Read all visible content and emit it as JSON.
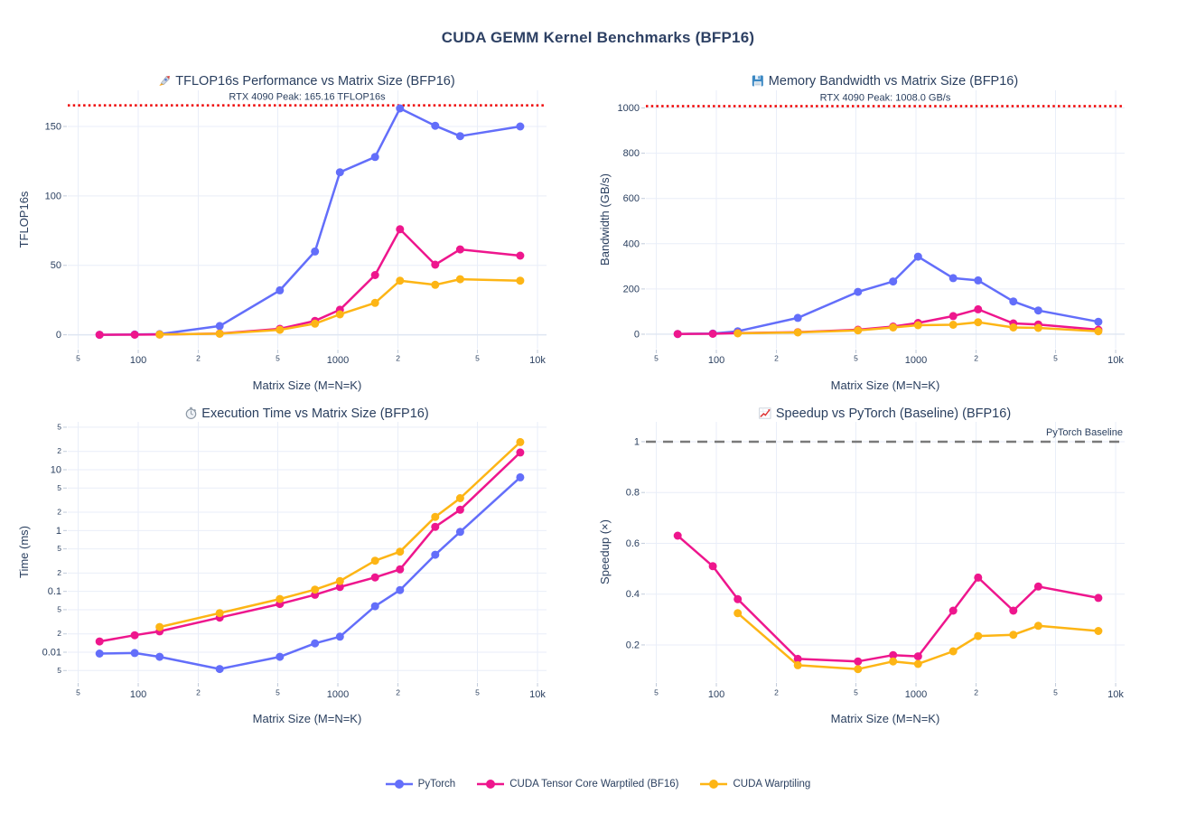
{
  "page_title": "CUDA GEMM Kernel Benchmarks (BFP16)",
  "colors": {
    "pytorch": "#636EFA",
    "tensor_core": "#EE168D",
    "warptiling": "#FDB515",
    "peak_line": "#EE0000",
    "baseline_line": "#7a7a7a",
    "text": "#2a3f5f",
    "grid": "#E9EEF8",
    "zero_line": "#DFE6F2",
    "tick_mark": "#C2CCDB"
  },
  "legend": {
    "items": [
      {
        "label": "PyTorch",
        "color_key": "pytorch"
      },
      {
        "label": "CUDA Tensor Core Warptiled (BF16)",
        "color_key": "tensor_core"
      },
      {
        "label": "CUDA Warptiling",
        "color_key": "warptiling"
      }
    ]
  },
  "x_axis": {
    "title": "Matrix Size (M=N=K)",
    "scale": "log",
    "ticks": [
      {
        "v": 50,
        "label": "5",
        "minor": true
      },
      {
        "v": 100,
        "label": "100"
      },
      {
        "v": 200,
        "label": "2",
        "minor": true
      },
      {
        "v": 500,
        "label": "5",
        "minor": true
      },
      {
        "v": 1000,
        "label": "1000"
      },
      {
        "v": 2000,
        "label": "2",
        "minor": true
      },
      {
        "v": 5000,
        "label": "5",
        "minor": true
      },
      {
        "v": 10000,
        "label": "10k"
      }
    ]
  },
  "chart_data": [
    {
      "id": "tflops",
      "type": "line",
      "title": "🚀 TFLOP16s Performance vs Matrix Size (BFP16)",
      "title_text": "TFLOP16s Performance vs Matrix Size (BFP16)",
      "icon": "rocket",
      "xlabel": "Matrix Size (M=N=K)",
      "ylabel": "TFLOP16s",
      "xscale": "log",
      "yscale": "linear",
      "xlim_log": [
        1.647,
        4.045
      ],
      "ylim": [
        -10,
        176
      ],
      "yticks": [
        {
          "v": 0,
          "label": "0"
        },
        {
          "v": 50,
          "label": "50"
        },
        {
          "v": 100,
          "label": "100"
        },
        {
          "v": 150,
          "label": "150"
        }
      ],
      "ref_line": {
        "v": 165.16,
        "label": "RTX 4090 Peak: 165.16 TFLOP16s",
        "dash": "dot",
        "color_key": "peak_line",
        "label_anchor": "center"
      },
      "series": [
        {
          "name": "PyTorch",
          "color_key": "pytorch",
          "x": [
            64,
            96,
            128,
            256,
            512,
            768,
            1024,
            1536,
            2048,
            3072,
            4096,
            8192
          ],
          "y": [
            0.04,
            0.18,
            0.45,
            6.3,
            32,
            60,
            117,
            128,
            163,
            150.5,
            143,
            150
          ]
        },
        {
          "name": "CUDA Tensor Core Warptiled (BF16)",
          "color_key": "tensor_core",
          "x": [
            64,
            96,
            128,
            256,
            512,
            768,
            1024,
            1536,
            2048,
            3072,
            4096,
            8192
          ],
          "y": [
            0.03,
            0.09,
            0.2,
            0.9,
            4.3,
            10,
            18,
            43,
            76,
            50.5,
            61.5,
            57
          ]
        },
        {
          "name": "CUDA Warptiling",
          "color_key": "warptiling",
          "x": [
            128,
            256,
            512,
            768,
            1024,
            1536,
            2048,
            3072,
            4096,
            8192
          ],
          "y": [
            0.2,
            0.8,
            3.6,
            8,
            14.7,
            23,
            39,
            36,
            40,
            39
          ]
        }
      ]
    },
    {
      "id": "bandwidth",
      "type": "line",
      "title": "💾 Memory Bandwidth vs Matrix Size (BFP16)",
      "title_text": "Memory Bandwidth vs Matrix Size (BFP16)",
      "icon": "floppy",
      "xlabel": "Matrix Size (M=N=K)",
      "ylabel": "Bandwidth (GB/s)",
      "xscale": "log",
      "yscale": "linear",
      "xlim_log": [
        1.647,
        4.045
      ],
      "ylim": [
        -64,
        1078
      ],
      "yticks": [
        {
          "v": 0,
          "label": "0"
        },
        {
          "v": 200,
          "label": "200"
        },
        {
          "v": 400,
          "label": "400"
        },
        {
          "v": 600,
          "label": "600"
        },
        {
          "v": 800,
          "label": "800"
        },
        {
          "v": 1000,
          "label": "1000"
        }
      ],
      "ref_line": {
        "v": 1008.0,
        "label": "RTX 4090 Peak: 1008.0 GB/s",
        "dash": "dot",
        "color_key": "peak_line",
        "label_anchor": "center"
      },
      "series": [
        {
          "name": "PyTorch",
          "color_key": "pytorch",
          "x": [
            64,
            96,
            128,
            256,
            512,
            768,
            1024,
            1536,
            2048,
            3072,
            4096,
            8192
          ],
          "y": [
            1,
            3,
            13,
            72,
            187,
            233,
            343,
            248,
            238,
            145,
            105,
            55
          ]
        },
        {
          "name": "CUDA Tensor Core Warptiled (BF16)",
          "color_key": "tensor_core",
          "x": [
            64,
            96,
            128,
            256,
            512,
            768,
            1024,
            1536,
            2048,
            3072,
            4096,
            8192
          ],
          "y": [
            1,
            2,
            5,
            9,
            20,
            34,
            50,
            80,
            110,
            48,
            43,
            20
          ]
        },
        {
          "name": "CUDA Warptiling",
          "color_key": "warptiling",
          "x": [
            128,
            256,
            512,
            768,
            1024,
            1536,
            2048,
            3072,
            4096,
            8192
          ],
          "y": [
            4,
            8,
            17,
            30,
            40,
            42,
            53,
            30,
            28,
            13
          ]
        }
      ]
    },
    {
      "id": "time",
      "type": "line",
      "title": "⏱️ Execution Time vs Matrix Size (BFP16)",
      "title_text": "Execution Time vs Matrix Size (BFP16)",
      "icon": "stopwatch",
      "xlabel": "Matrix Size (M=N=K)",
      "ylabel": "Time (ms)",
      "xscale": "log",
      "yscale": "log",
      "xlim_log": [
        1.647,
        4.045
      ],
      "ylim_log": [
        -2.49,
        1.787
      ],
      "yticks": [
        {
          "v": 0.005,
          "label": "5",
          "minor": true
        },
        {
          "v": 0.01,
          "label": "0.01"
        },
        {
          "v": 0.02,
          "label": "2",
          "minor": true
        },
        {
          "v": 0.05,
          "label": "5",
          "minor": true
        },
        {
          "v": 0.1,
          "label": "0.1"
        },
        {
          "v": 0.2,
          "label": "2",
          "minor": true
        },
        {
          "v": 0.5,
          "label": "5",
          "minor": true
        },
        {
          "v": 1,
          "label": "1"
        },
        {
          "v": 2,
          "label": "2",
          "minor": true
        },
        {
          "v": 5,
          "label": "5",
          "minor": true
        },
        {
          "v": 10,
          "label": "10"
        },
        {
          "v": 20,
          "label": "2",
          "minor": true
        },
        {
          "v": 50,
          "label": "5",
          "minor": true
        }
      ],
      "series": [
        {
          "name": "PyTorch",
          "color_key": "pytorch",
          "x": [
            64,
            96,
            128,
            256,
            512,
            768,
            1024,
            1536,
            2048,
            3072,
            4096,
            8192
          ],
          "y": [
            0.0095,
            0.0097,
            0.0084,
            0.0053,
            0.0084,
            0.014,
            0.018,
            0.057,
            0.105,
            0.4,
            0.95,
            7.5
          ]
        },
        {
          "name": "CUDA Tensor Core Warptiled (BF16)",
          "color_key": "tensor_core",
          "x": [
            64,
            96,
            128,
            256,
            512,
            768,
            1024,
            1536,
            2048,
            3072,
            4096,
            8192
          ],
          "y": [
            0.015,
            0.019,
            0.022,
            0.037,
            0.062,
            0.088,
            0.118,
            0.17,
            0.23,
            1.15,
            2.2,
            19.2
          ]
        },
        {
          "name": "CUDA Warptiling",
          "color_key": "warptiling",
          "x": [
            128,
            256,
            512,
            768,
            1024,
            1536,
            2048,
            3072,
            4096,
            8192
          ],
          "y": [
            0.026,
            0.044,
            0.075,
            0.107,
            0.148,
            0.32,
            0.45,
            1.68,
            3.4,
            28.5
          ]
        }
      ]
    },
    {
      "id": "speedup",
      "type": "line",
      "title": "📈 Speedup vs PyTorch (Baseline) (BFP16)",
      "title_text": "Speedup vs PyTorch (Baseline) (BFP16)",
      "icon": "chart",
      "xlabel": "Matrix Size (M=N=K)",
      "ylabel": "Speedup (×)",
      "xscale": "log",
      "yscale": "linear",
      "xlim_log": [
        1.647,
        4.045
      ],
      "ylim": [
        0.054,
        1.078
      ],
      "yticks": [
        {
          "v": 0.2,
          "label": "0.2"
        },
        {
          "v": 0.4,
          "label": "0.4"
        },
        {
          "v": 0.6,
          "label": "0.6"
        },
        {
          "v": 0.8,
          "label": "0.8"
        },
        {
          "v": 1,
          "label": "1"
        }
      ],
      "ref_line": {
        "v": 1.0,
        "label": "PyTorch Baseline",
        "dash": "dash",
        "color_key": "baseline_line",
        "label_anchor": "right"
      },
      "series": [
        {
          "name": "CUDA Tensor Core Warptiled (BF16)",
          "color_key": "tensor_core",
          "x": [
            64,
            96,
            128,
            256,
            512,
            768,
            1024,
            1536,
            2048,
            3072,
            4096,
            8192
          ],
          "y": [
            0.63,
            0.51,
            0.38,
            0.145,
            0.135,
            0.16,
            0.155,
            0.335,
            0.465,
            0.335,
            0.43,
            0.385
          ]
        },
        {
          "name": "CUDA Warptiling",
          "color_key": "warptiling",
          "x": [
            128,
            256,
            512,
            768,
            1024,
            1536,
            2048,
            3072,
            4096,
            8192
          ],
          "y": [
            0.325,
            0.12,
            0.105,
            0.135,
            0.125,
            0.175,
            0.235,
            0.24,
            0.275,
            0.255
          ]
        }
      ]
    }
  ]
}
